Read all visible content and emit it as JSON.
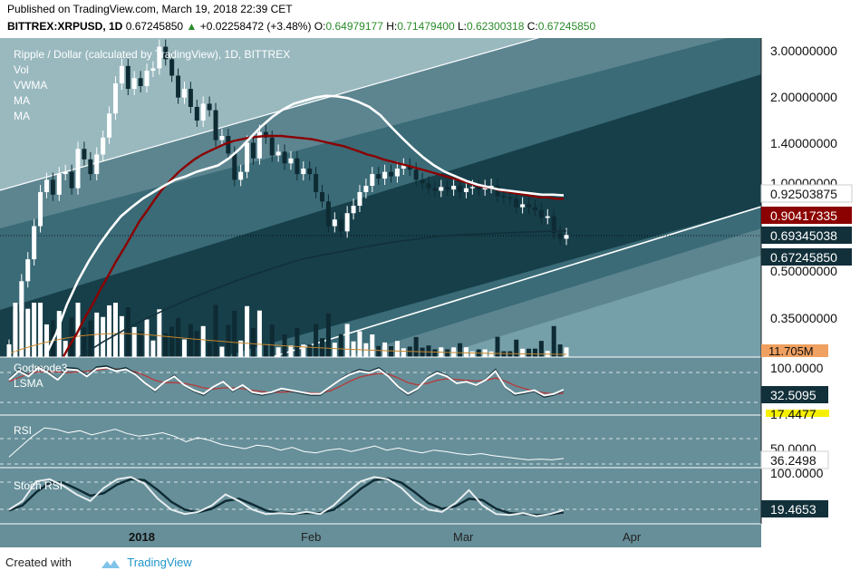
{
  "header": {
    "published": "Published on TradingView.com, March 19, 2018 22:39 CET",
    "symbol": "BITTREX:XRPUSD, 1D",
    "last": "0.67245850",
    "change": "+0.02258472 (+3.48%)",
    "o_label": "O:",
    "o_value": "0.64979177",
    "h_label": "H:",
    "h_value": "0.71479400",
    "l_label": "L:",
    "l_value": "0.62300318",
    "c_label": "C:",
    "c_value": "0.67245850"
  },
  "footer": {
    "created_with": "Created with",
    "brand": "TradingView"
  },
  "colors": {
    "band_outer": "#5c8590",
    "band_mid": "#3a6b77",
    "band_inner": "#163f4a",
    "bg_light": "#76a0a9",
    "ma_red": "#8b0000",
    "ma_dark": "#12303a",
    "white": "#ffffff",
    "vol_orange": "#c8862a"
  },
  "chart_data": {
    "main": {
      "type": "candlestick",
      "title": "Ripple / Dollar (calculated by TradingView), 1D, BITTREX",
      "indicators": [
        "Vol",
        "VWMA",
        "MA",
        "MA"
      ],
      "y_scale": "log",
      "y_ticks": [
        "3.00000000",
        "2.00000000",
        "1.40000000",
        "1.00000000",
        "0.50000000",
        "0.35000000"
      ],
      "price_labels": [
        {
          "value": "0.92503875",
          "style": "white"
        },
        {
          "value": "0.90417335",
          "style": "red"
        },
        {
          "value": "0.69345038",
          "style": "dark"
        },
        {
          "value": "0.67245850",
          "style": "dark"
        }
      ],
      "volume_label": "11.705M",
      "x_labels": [
        "2018",
        "Feb",
        "Mar",
        "Apr"
      ],
      "closes": [
        0.27,
        0.36,
        0.46,
        0.55,
        0.72,
        0.95,
        1.05,
        0.93,
        1.1,
        1.12,
        0.98,
        1.35,
        1.24,
        1.1,
        1.29,
        1.48,
        1.8,
        2.3,
        2.65,
        2.2,
        2.4,
        2.25,
        2.55,
        2.6,
        3.1,
        2.8,
        2.45,
        2.05,
        2.2,
        1.9,
        1.7,
        1.95,
        1.85,
        1.45,
        1.5,
        1.3,
        1.05,
        1.12,
        1.42,
        1.25,
        1.55,
        1.48,
        1.28,
        1.32,
        1.2,
        1.25,
        1.1,
        1.15,
        1.1,
        0.95,
        0.88,
        0.72,
        0.76,
        0.69,
        0.8,
        0.85,
        0.95,
        1.0,
        1.1,
        1.06,
        1.12,
        1.08,
        1.15,
        1.18,
        1.14,
        1.05,
        1.02,
        0.98,
        0.96,
        0.99,
        0.97,
        1.0,
        0.95,
        0.98,
        0.99,
        0.97,
        0.99,
        1.0,
        0.92,
        0.91,
        0.9,
        0.84,
        0.86,
        0.84,
        0.82,
        0.77,
        0.78,
        0.68,
        0.65,
        0.67
      ],
      "ma_red": [
        0.2,
        0.22,
        0.24,
        0.27,
        0.3,
        0.34,
        0.38,
        0.43,
        0.48,
        0.54,
        0.6,
        0.67,
        0.75,
        0.82,
        0.9,
        0.98,
        1.05,
        1.12,
        1.18,
        1.24,
        1.29,
        1.33,
        1.37,
        1.41,
        1.44,
        1.46,
        1.48,
        1.49,
        1.5,
        1.5,
        1.5,
        1.49,
        1.48,
        1.47,
        1.46,
        1.44,
        1.42,
        1.4,
        1.38,
        1.35,
        1.32,
        1.29,
        1.27,
        1.24,
        1.22,
        1.2,
        1.18,
        1.16,
        1.14,
        1.12,
        1.1,
        1.08,
        1.06,
        1.04,
        1.02,
        1.0,
        0.99,
        0.98,
        0.96,
        0.95,
        0.94,
        0.93,
        0.92,
        0.91,
        0.91,
        0.9,
        0.9
      ],
      "vwma_white": [
        0.25,
        0.3,
        0.38,
        0.46,
        0.54,
        0.62,
        0.7,
        0.78,
        0.84,
        0.9,
        0.95,
        1.0,
        1.05,
        1.08,
        1.12,
        1.15,
        1.18,
        1.25,
        1.35,
        1.48,
        1.62,
        1.75,
        1.86,
        1.95,
        2.0,
        2.05,
        2.08,
        2.07,
        2.04,
        1.98,
        1.9,
        1.78,
        1.62,
        1.48,
        1.36,
        1.26,
        1.18,
        1.12,
        1.08,
        1.04,
        1.01,
        0.99,
        0.97,
        0.96,
        0.95,
        0.94,
        0.93,
        0.93,
        0.925
      ],
      "ma_dark": [
        0.2,
        0.22,
        0.25,
        0.28,
        0.31,
        0.34,
        0.37,
        0.4,
        0.43,
        0.46,
        0.49,
        0.52,
        0.55,
        0.57,
        0.59,
        0.61,
        0.63,
        0.645,
        0.66,
        0.67,
        0.675,
        0.68,
        0.685,
        0.69,
        0.693
      ]
    },
    "godmode": {
      "title": "Godmode3",
      "sub": "LSMA",
      "y_ticks": [
        "100.0000"
      ],
      "last_value": "32.5095",
      "signal_value": "17.4477",
      "values": [
        60,
        85,
        70,
        95,
        80,
        60,
        90,
        88,
        70,
        92,
        95,
        85,
        90,
        75,
        50,
        30,
        55,
        70,
        45,
        30,
        20,
        40,
        55,
        30,
        45,
        25,
        20,
        25,
        35,
        30,
        25,
        20,
        20,
        40,
        60,
        75,
        85,
        80,
        90,
        70,
        40,
        20,
        35,
        65,
        80,
        70,
        50,
        55,
        45,
        60,
        85,
        40,
        20,
        25,
        30,
        15,
        20,
        32
      ],
      "lsma": [
        55,
        65,
        75,
        80,
        82,
        80,
        78,
        80,
        82,
        85,
        88,
        88,
        86,
        80,
        70,
        58,
        52,
        52,
        50,
        45,
        38,
        35,
        38,
        38,
        36,
        32,
        28,
        26,
        27,
        28,
        27,
        25,
        24,
        30,
        42,
        55,
        66,
        72,
        76,
        74,
        64,
        52,
        46,
        50,
        58,
        62,
        60,
        58,
        56,
        58,
        64,
        56,
        44,
        36,
        30,
        25,
        22,
        24
      ]
    },
    "rsi": {
      "title": "RSI",
      "y_ticks": [
        "50.0000"
      ],
      "last_value": "36.2498",
      "values": [
        40,
        55,
        70,
        82,
        80,
        75,
        78,
        72,
        76,
        80,
        74,
        70,
        72,
        75,
        70,
        62,
        68,
        64,
        58,
        55,
        52,
        57,
        55,
        50,
        54,
        48,
        46,
        50,
        52,
        48,
        52,
        56,
        50,
        53,
        49,
        46,
        50,
        48,
        45,
        43,
        45,
        42,
        40,
        38,
        36,
        37,
        36,
        38
      ]
    },
    "stoch": {
      "title": "Stoch RSI",
      "y_ticks": [
        "100.0000"
      ],
      "last_value": "19.4653",
      "k": [
        20,
        40,
        85,
        90,
        75,
        55,
        40,
        70,
        90,
        95,
        80,
        45,
        20,
        10,
        15,
        30,
        55,
        40,
        20,
        10,
        12,
        10,
        15,
        10,
        30,
        60,
        85,
        95,
        90,
        70,
        40,
        20,
        15,
        35,
        65,
        30,
        10,
        8,
        12,
        5,
        10,
        19
      ],
      "d": [
        18,
        30,
        60,
        82,
        82,
        68,
        52,
        58,
        78,
        90,
        88,
        65,
        38,
        20,
        14,
        22,
        40,
        45,
        32,
        18,
        12,
        11,
        12,
        12,
        20,
        42,
        68,
        88,
        92,
        82,
        60,
        35,
        22,
        28,
        45,
        42,
        22,
        12,
        10,
        8,
        9,
        14
      ]
    }
  }
}
